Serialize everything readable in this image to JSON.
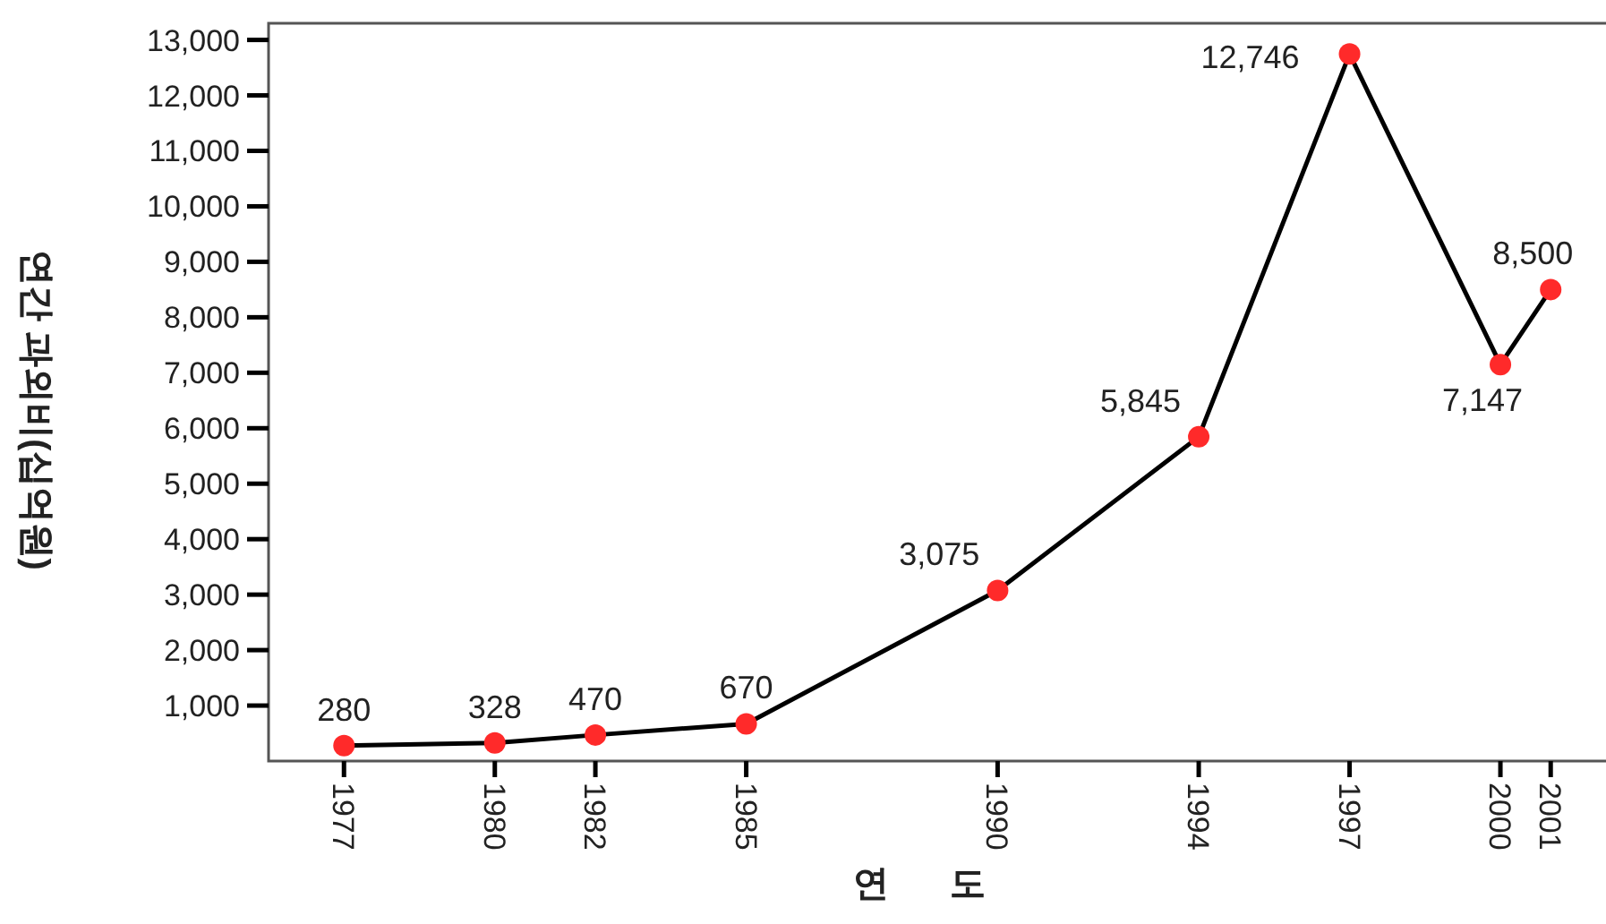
{
  "chart_data": {
    "type": "line",
    "xlabel": "연 도",
    "ylabel": "연간 과외비(십억원)",
    "x": [
      1977,
      1980,
      1982,
      1985,
      1990,
      1994,
      1997,
      2000,
      2001
    ],
    "series": [
      {
        "color": "#000000",
        "values": [
          280,
          328,
          470,
          670,
          3075,
          5845,
          12746,
          7147,
          8500
        ],
        "value_labels": [
          "280",
          "328",
          "470",
          "670",
          "3,075",
          "5,845",
          "12,746",
          "7,147",
          "8,500"
        ]
      }
    ],
    "marker": "circle",
    "grid": false,
    "xlim": [
      1975.5,
      2002.1
    ],
    "ylim": [
      0,
      13300
    ],
    "xticks": [
      1977,
      1980,
      1982,
      1985,
      1990,
      1994,
      1997,
      2000,
      2001
    ],
    "yticks": [
      {
        "value": 1000,
        "label": "1,000"
      },
      {
        "value": 2000,
        "label": "2,000"
      },
      {
        "value": 3000,
        "label": "3,000"
      },
      {
        "value": 4000,
        "label": "4,000"
      },
      {
        "value": 5000,
        "label": "5,000"
      },
      {
        "value": 6000,
        "label": "6,000"
      },
      {
        "value": 7000,
        "label": "7,000"
      },
      {
        "value": 8000,
        "label": "8,000"
      },
      {
        "value": 9000,
        "label": "9,000"
      },
      {
        "value": 10000,
        "label": "10,000"
      },
      {
        "value": 11000,
        "label": "11,000"
      },
      {
        "value": 12000,
        "label": "12,000"
      },
      {
        "value": 13000,
        "label": "13,000"
      }
    ]
  }
}
